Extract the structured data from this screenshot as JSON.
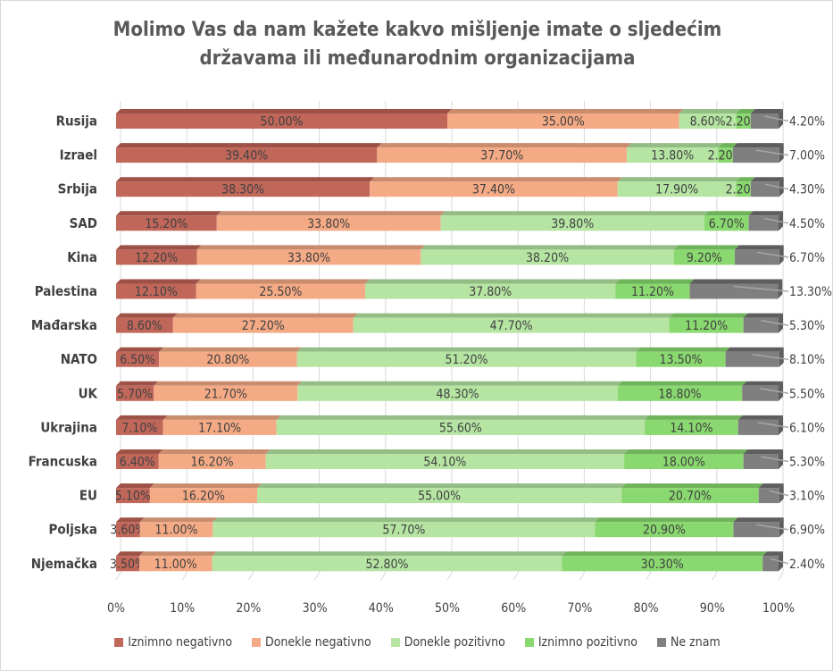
{
  "chart_data": {
    "type": "bar",
    "orientation": "horizontal-stacked-100",
    "title_line1": "Molimo Vas da nam kažete kakvo mišljenje imate o sljedećim",
    "title_line2": "državama ili međunarodnim organizacijama",
    "categories": [
      "Rusija",
      "Izrael",
      "Srbija",
      "SAD",
      "Kina",
      "Palestina",
      "Mađarska",
      "NATO",
      "UK",
      "Ukrajina",
      "Francuska",
      "EU",
      "Poljska",
      "Njemačka"
    ],
    "series": [
      {
        "name": "Iznimno negativno",
        "color": "#C0675A",
        "top": "#9E5146",
        "values": [
          50.0,
          39.4,
          38.3,
          15.2,
          12.2,
          12.1,
          8.6,
          6.5,
          5.7,
          7.1,
          6.4,
          5.1,
          3.6,
          3.5
        ]
      },
      {
        "name": "Donekle negativno",
        "color": "#F4AA85",
        "top": "#C98C6D",
        "values": [
          35.0,
          37.7,
          37.4,
          33.8,
          33.8,
          25.5,
          27.2,
          20.8,
          21.7,
          17.1,
          16.2,
          16.2,
          11.0,
          11.0
        ]
      },
      {
        "name": "Donekle pozitivno",
        "color": "#B6E5A3",
        "top": "#94BD85",
        "values": [
          8.6,
          13.8,
          17.9,
          39.8,
          38.2,
          37.8,
          47.7,
          51.2,
          48.3,
          55.6,
          54.1,
          55.0,
          57.7,
          52.8
        ]
      },
      {
        "name": "Iznimno pozitivno",
        "color": "#8AD870",
        "top": "#6FB35A",
        "values": [
          2.2,
          2.2,
          2.2,
          6.7,
          9.2,
          11.2,
          11.2,
          13.5,
          18.8,
          14.1,
          18.0,
          20.7,
          20.9,
          30.3
        ]
      },
      {
        "name": "Ne znam",
        "color": "#7F7F7F",
        "top": "#5E5E5E",
        "values": [
          4.2,
          7.0,
          4.3,
          4.5,
          6.7,
          13.3,
          5.3,
          8.1,
          5.5,
          6.1,
          5.3,
          3.1,
          6.9,
          2.4
        ]
      }
    ],
    "xticks": [
      "0%",
      "10%",
      "20%",
      "30%",
      "40%",
      "50%",
      "60%",
      "70%",
      "80%",
      "90%",
      "100%"
    ],
    "xlim": [
      0,
      100
    ],
    "grid": true,
    "legend_position": "bottom"
  }
}
